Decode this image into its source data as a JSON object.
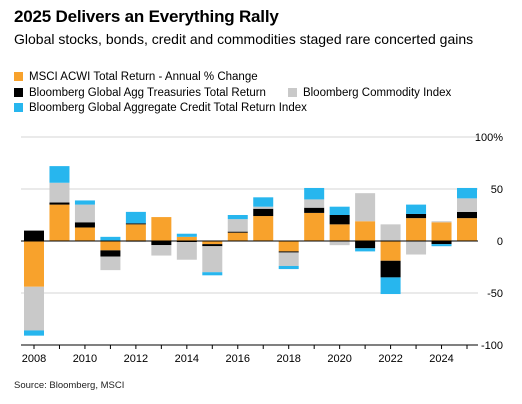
{
  "header": {
    "title": "2025 Delivers an Everything Rally",
    "subtitle": "Global stocks, bonds, credit and commodities staged rare concerted gains"
  },
  "source": "Source: Bloomberg, MSCI",
  "chart_data": {
    "type": "bar",
    "stacked": true,
    "x": [
      2008,
      2009,
      2010,
      2011,
      2012,
      2013,
      2014,
      2015,
      2016,
      2017,
      2018,
      2019,
      2020,
      2021,
      2022,
      2023,
      2024,
      2025
    ],
    "x_ticks": [
      "2008",
      "2010",
      "2012",
      "2014",
      "2016",
      "2018",
      "2020",
      "2022",
      "2024"
    ],
    "y_ticks": [
      {
        "value": 100,
        "label": "100%"
      },
      {
        "value": 50,
        "label": "50"
      },
      {
        "value": 0,
        "label": "0"
      },
      {
        "value": -50,
        "label": "-50"
      },
      {
        "value": -100,
        "label": "-100"
      }
    ],
    "ylim": [
      -105,
      105
    ],
    "grid": "horizontal",
    "legend_position": "top-left",
    "series": [
      {
        "name": "MSCI ACWI Total Return - Annual % Change",
        "color": "#f8a22c",
        "values": [
          -44,
          35,
          13,
          -9,
          16,
          23,
          4,
          -3,
          8,
          24,
          -10,
          27,
          16,
          19,
          -19,
          22,
          18,
          22
        ]
      },
      {
        "name": "Bloomberg Global Agg Treasuries Total Return",
        "color": "#000000",
        "values": [
          10,
          2,
          5,
          -6,
          1,
          -4,
          -1,
          -2,
          1,
          7,
          -1,
          5,
          9,
          -7,
          -16,
          4,
          -3,
          6
        ]
      },
      {
        "name": "Bloomberg Commodity Index",
        "color": "#c9c9c9",
        "values": [
          -42,
          19,
          17,
          -13,
          -1,
          -10,
          -17,
          -25,
          12,
          2,
          -13,
          8,
          -4,
          27,
          16,
          -13,
          1,
          13
        ]
      },
      {
        "name": "Bloomberg Global Aggregate Credit Total Return Index",
        "color": "#27b6ee",
        "values": [
          -5,
          16,
          4,
          4,
          11,
          0,
          3,
          -3,
          4,
          9,
          -3,
          11,
          8,
          -3,
          -16,
          9,
          -2,
          10
        ]
      }
    ]
  }
}
